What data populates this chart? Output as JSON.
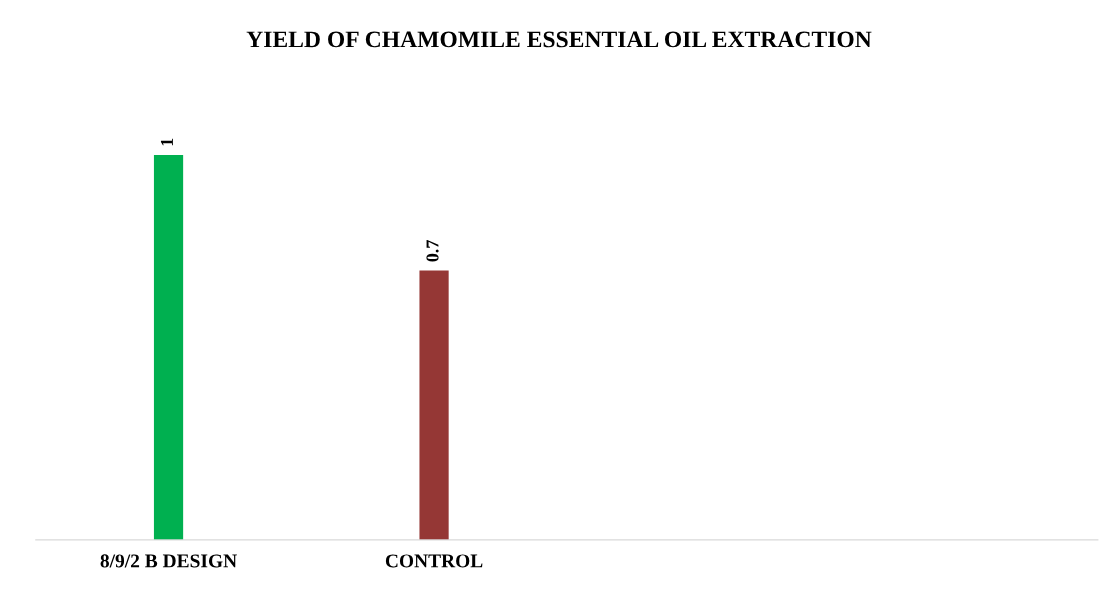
{
  "chart_data": {
    "type": "bar",
    "title": "YIELD OF CHAMOMILE ESSENTIAL OIL EXTRACTION",
    "categories": [
      "8/9/2 B DESIGN",
      "CONTROL",
      null,
      null
    ],
    "values": [
      1,
      0.7,
      null,
      null
    ],
    "colors": [
      "#00b050",
      "#953735",
      "#953735",
      "#953735"
    ],
    "data_labels": true,
    "grid": false,
    "legend": false,
    "tick_labels": "x"
  }
}
